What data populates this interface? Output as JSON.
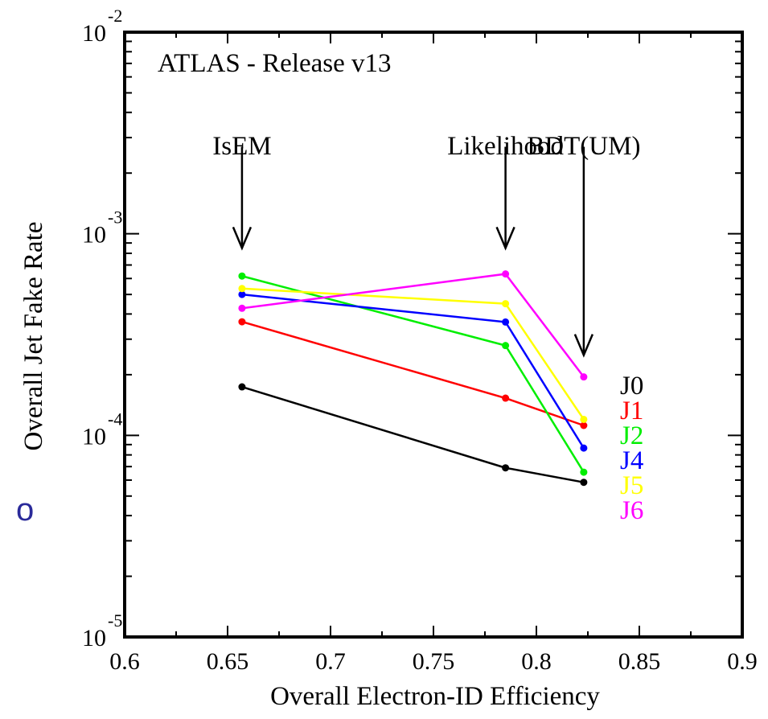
{
  "stray_glyph": "o",
  "chart_data": {
    "type": "line",
    "title": "ATLAS - Release v13",
    "xlabel": "Overall Electron-ID Efficiency",
    "ylabel": "Overall Jet Fake Rate",
    "xlim": [
      0.6,
      0.9
    ],
    "ylim": [
      1e-05,
      0.01
    ],
    "yscale": "log",
    "grid": false,
    "legend_position": "right",
    "x_ticks": [
      "0.6",
      "0.65",
      "0.7",
      "0.75",
      "0.8",
      "0.85",
      "0.9"
    ],
    "y_ticks": [
      {
        "value": 0.01,
        "base": "10",
        "exp": "-2"
      },
      {
        "value": 0.001,
        "base": "10",
        "exp": "-3"
      },
      {
        "value": 0.0001,
        "base": "10",
        "exp": "-4"
      },
      {
        "value": 1e-05,
        "base": "10",
        "exp": "-5"
      }
    ],
    "annotations": [
      {
        "text": "IsEM",
        "x": 0.657,
        "arrow_from": 0.0027,
        "arrow_to": 0.00085
      },
      {
        "text": "Likelihood",
        "x": 0.785,
        "arrow_from": 0.0027,
        "arrow_to": 0.00085
      },
      {
        "text": "BDT(UM)",
        "x": 0.823,
        "arrow_from": 0.0027,
        "arrow_to": 0.00025
      }
    ],
    "x": [
      0.657,
      0.785,
      0.823
    ],
    "series": [
      {
        "name": "J0",
        "color": "#000000",
        "values": [
          0.000174,
          6.9e-05,
          5.85e-05
        ]
      },
      {
        "name": "J1",
        "color": "#ff0000",
        "values": [
          0.000366,
          0.000153,
          0.000112
        ]
      },
      {
        "name": "J2",
        "color": "#00ee00",
        "values": [
          0.000617,
          0.000279,
          6.57e-05
        ]
      },
      {
        "name": "J4",
        "color": "#0000ff",
        "values": [
          0.0005,
          0.000365,
          8.65e-05
        ]
      },
      {
        "name": "J5",
        "color": "#ffff00",
        "values": [
          0.000535,
          0.00045,
          0.00012
        ]
      },
      {
        "name": "J6",
        "color": "#ff00ff",
        "values": [
          0.000427,
          0.000632,
          0.000195
        ]
      }
    ]
  }
}
